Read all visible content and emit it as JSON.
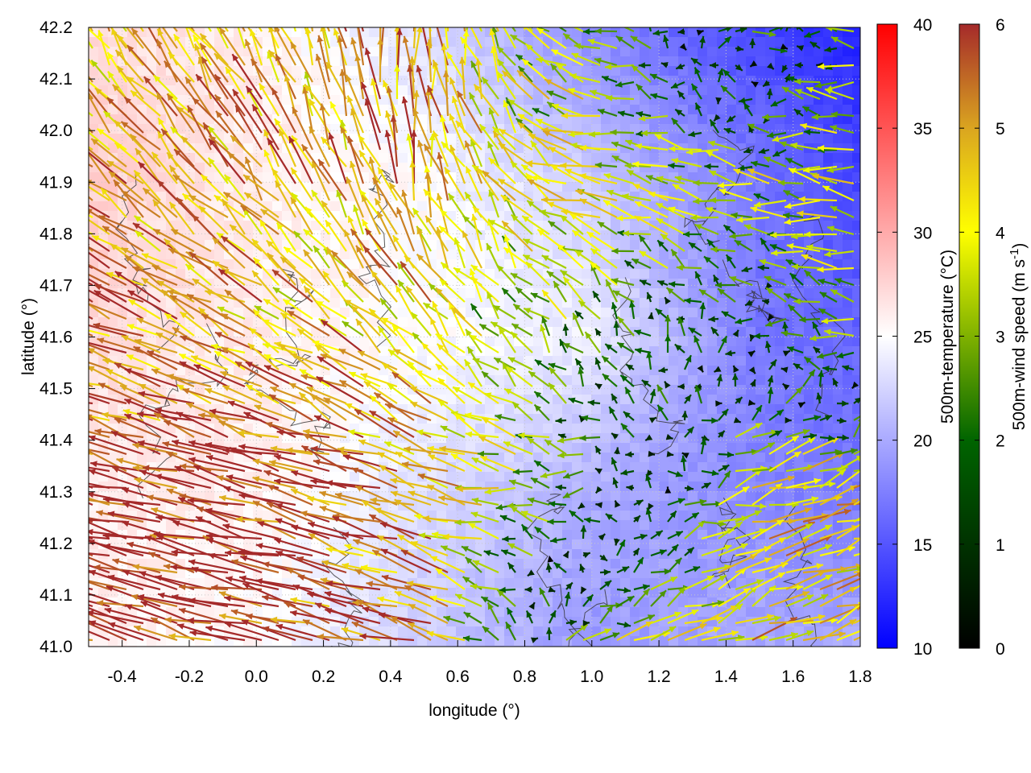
{
  "chart_data": {
    "type": "vector-field-heatmap",
    "xlabel": "longitude (°)",
    "ylabel": "latitude (°)",
    "xlim": [
      -0.5,
      1.8
    ],
    "ylim": [
      41.0,
      42.2
    ],
    "xticks": [
      "-0.4",
      "-0.2",
      "0.0",
      "0.2",
      "0.4",
      "0.6",
      "0.8",
      "1.0",
      "1.2",
      "1.4",
      "1.6",
      "1.8"
    ],
    "yticks": [
      "41.0",
      "41.1",
      "41.2",
      "41.3",
      "41.4",
      "41.5",
      "41.6",
      "41.7",
      "41.8",
      "41.9",
      "42.0",
      "42.1",
      "42.2"
    ],
    "grid": true,
    "temperature_colorbar": {
      "label": "500m-temperature (°C)",
      "range": [
        10,
        40
      ],
      "ticks": [
        "10",
        "15",
        "20",
        "25",
        "30",
        "35",
        "40"
      ],
      "colors": [
        "#0000ff",
        "#ffffff",
        "#ff0000"
      ]
    },
    "wind_colorbar": {
      "label": "500m-wind speed (m s",
      "label_sup": "-1",
      "label_end": ")",
      "range": [
        0,
        6
      ],
      "ticks": [
        "0",
        "1",
        "2",
        "3",
        "4",
        "5",
        "6"
      ],
      "colors": [
        "#000000",
        "#006400",
        "#ffff00",
        "#daa520",
        "#a52a2a"
      ]
    },
    "field_grid": {
      "lon": [
        -0.5,
        0.0,
        0.5,
        1.0,
        1.5,
        1.8
      ],
      "lat": [
        41.0,
        41.3,
        41.6,
        41.9,
        42.2
      ],
      "u_ms": [
        [
          -6,
          -6,
          -5,
          3,
          4,
          4
        ],
        [
          -6,
          -6,
          -5,
          -2,
          4,
          4.5
        ],
        [
          -5,
          -4,
          -3,
          -1,
          -0.5,
          -3
        ],
        [
          -4,
          -3,
          -1,
          -4,
          -3,
          -4
        ],
        [
          -2,
          -2,
          0,
          -3,
          2,
          -3
        ]
      ],
      "v_ms": [
        [
          1.5,
          1.5,
          1.5,
          1,
          1.5,
          1.5
        ],
        [
          1.5,
          1.5,
          1.5,
          0,
          1.2,
          1.5
        ],
        [
          2,
          2,
          3,
          2,
          0.3,
          0.5
        ],
        [
          3,
          4,
          5,
          1,
          0.5,
          0.5
        ],
        [
          4,
          4,
          5,
          1,
          0,
          0
        ]
      ],
      "temperature_c": [
        [
          26,
          25,
          22,
          19,
          20,
          20
        ],
        [
          26,
          26,
          23,
          20,
          18,
          17
        ],
        [
          27,
          26,
          25,
          24,
          17,
          16
        ],
        [
          28,
          26,
          25,
          22,
          17,
          14
        ],
        [
          27,
          26,
          23,
          18,
          14,
          12
        ]
      ]
    }
  }
}
